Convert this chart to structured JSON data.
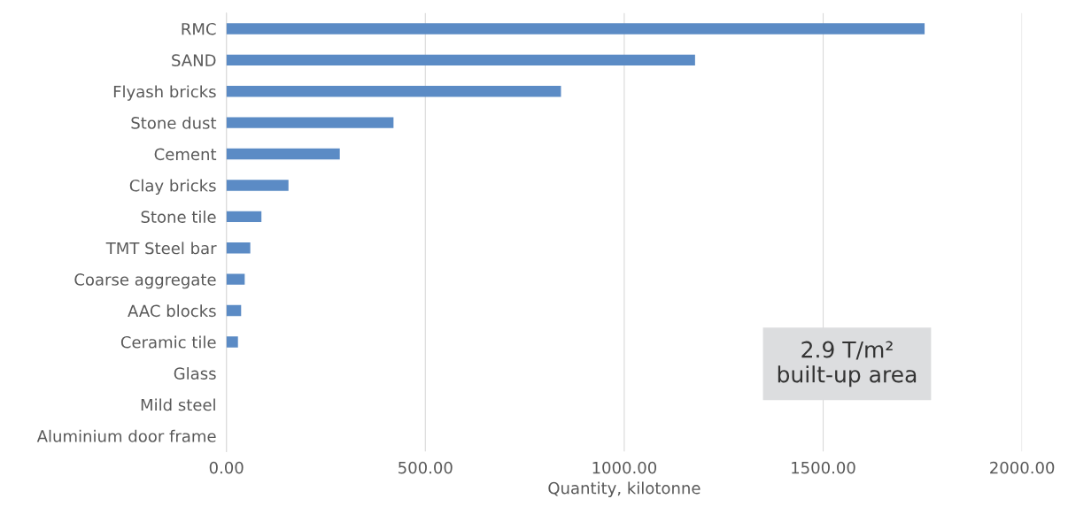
{
  "chart_data": {
    "type": "bar",
    "orientation": "horizontal",
    "categories": [
      "RMC",
      "SAND",
      "Flyash bricks",
      "Stone dust",
      "Cement",
      "Clay bricks",
      "Stone tile",
      "TMT Steel bar",
      "Coarse aggregate",
      "AAC blocks",
      "Ceramic tile",
      "Glass",
      "Mild steel",
      "Aluminium door frame"
    ],
    "values": [
      1755,
      1178,
      841,
      420,
      285,
      156,
      88,
      60,
      46,
      37,
      29,
      0,
      0,
      0
    ],
    "color": "#5b8bc5",
    "xlabel": "Quantity, kilotonne",
    "xlim": [
      0,
      2000
    ],
    "xticks": [
      {
        "value": 0,
        "label": "0.00"
      },
      {
        "value": 500,
        "label": "500.00"
      },
      {
        "value": 1000,
        "label": "1000.00"
      },
      {
        "value": 1500,
        "label": "1500.00"
      },
      {
        "value": 2000,
        "label": "2000.00"
      }
    ],
    "grid": "x",
    "annotations": [
      "2.9 T/m²\nbuilt-up area"
    ]
  }
}
